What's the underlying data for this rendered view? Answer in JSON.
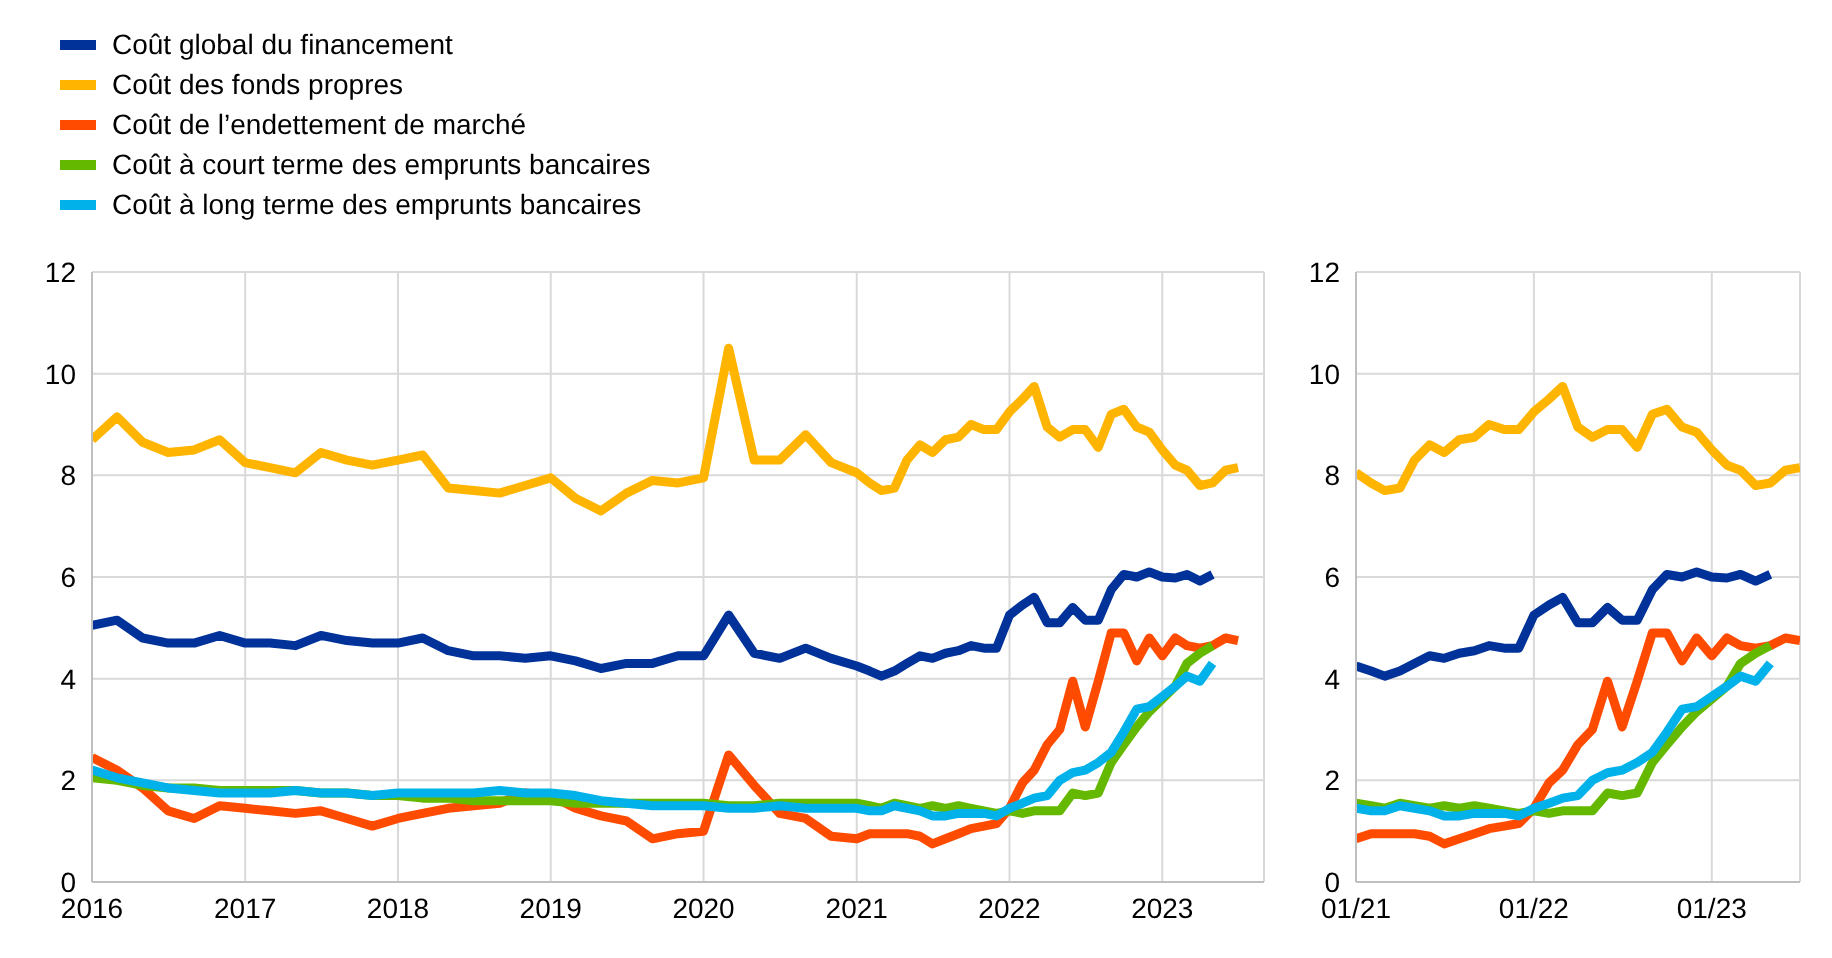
{
  "chart_data": [
    {
      "type": "line",
      "legend": "top left",
      "grid": true,
      "x": [
        "2016-01",
        "2016-03",
        "2016-05",
        "2016-07",
        "2016-09",
        "2016-11",
        "2017-01",
        "2017-03",
        "2017-05",
        "2017-07",
        "2017-09",
        "2017-11",
        "2018-01",
        "2018-03",
        "2018-05",
        "2018-07",
        "2018-09",
        "2018-11",
        "2019-01",
        "2019-03",
        "2019-05",
        "2019-07",
        "2019-09",
        "2019-11",
        "2020-01",
        "2020-03",
        "2020-05",
        "2020-07",
        "2020-09",
        "2020-11",
        "2021-01",
        "2021-02",
        "2021-03",
        "2021-04",
        "2021-05",
        "2021-06",
        "2021-07",
        "2021-08",
        "2021-09",
        "2021-10",
        "2021-11",
        "2021-12",
        "2022-01",
        "2022-02",
        "2022-03",
        "2022-04",
        "2022-05",
        "2022-06",
        "2022-07",
        "2022-08",
        "2022-09",
        "2022-10",
        "2022-11",
        "2022-12",
        "2023-01",
        "2023-02",
        "2023-03",
        "2023-04",
        "2023-05",
        "2023-06",
        "2023-07"
      ],
      "xlim": [
        "2016-01",
        "2023-09"
      ],
      "xticks": [
        {
          "value": "2016-01",
          "label": "2016"
        },
        {
          "value": "2017-01",
          "label": "2017"
        },
        {
          "value": "2018-01",
          "label": "2018"
        },
        {
          "value": "2019-01",
          "label": "2019"
        },
        {
          "value": "2020-01",
          "label": "2020"
        },
        {
          "value": "2021-01",
          "label": "2021"
        },
        {
          "value": "2022-01",
          "label": "2022"
        },
        {
          "value": "2023-01",
          "label": "2023"
        }
      ],
      "ylim": [
        0,
        12
      ],
      "yticks": [
        0,
        2,
        4,
        6,
        8,
        10,
        12
      ],
      "series": [
        {
          "name": "Coût global du financement",
          "color": "#003299",
          "values": [
            5.05,
            5.15,
            4.8,
            4.7,
            4.7,
            4.85,
            4.7,
            4.7,
            4.65,
            4.85,
            4.75,
            4.7,
            4.7,
            4.8,
            4.55,
            4.45,
            4.45,
            4.4,
            4.45,
            4.35,
            4.2,
            4.3,
            4.3,
            4.45,
            4.45,
            5.25,
            4.5,
            4.4,
            4.6,
            4.4,
            4.25,
            4.15,
            4.05,
            4.15,
            4.3,
            4.45,
            4.4,
            4.5,
            4.55,
            4.65,
            4.6,
            4.6,
            5.25,
            5.45,
            5.6,
            5.1,
            5.1,
            5.4,
            5.15,
            5.15,
            5.75,
            6.05,
            6.0,
            6.1,
            6.0,
            5.98,
            6.05,
            5.92,
            6.05,
            null,
            null
          ]
        },
        {
          "name": "Coût des fonds propres",
          "color": "#ffb400",
          "values": [
            8.7,
            9.15,
            8.65,
            8.45,
            8.5,
            8.7,
            8.25,
            8.15,
            8.05,
            8.45,
            8.3,
            8.2,
            8.3,
            8.4,
            7.75,
            7.7,
            7.65,
            7.8,
            7.95,
            7.55,
            7.3,
            7.65,
            7.9,
            7.85,
            7.95,
            10.5,
            8.3,
            8.3,
            8.8,
            8.25,
            8.05,
            7.85,
            7.7,
            7.75,
            8.3,
            8.6,
            8.45,
            8.7,
            8.75,
            9.0,
            8.9,
            8.9,
            9.25,
            9.5,
            9.75,
            8.95,
            8.75,
            8.9,
            8.9,
            8.55,
            9.2,
            9.3,
            8.95,
            8.85,
            8.5,
            8.2,
            8.1,
            7.8,
            7.85,
            8.1,
            8.15
          ]
        },
        {
          "name": "Coût de l’endettement de marché",
          "color": "#ff4b00",
          "values": [
            2.45,
            2.2,
            1.85,
            1.4,
            1.25,
            1.5,
            1.45,
            1.4,
            1.35,
            1.4,
            1.25,
            1.1,
            1.25,
            1.35,
            1.45,
            1.5,
            1.55,
            1.75,
            1.7,
            1.45,
            1.3,
            1.2,
            0.85,
            0.95,
            1.0,
            2.5,
            1.9,
            1.35,
            1.25,
            0.9,
            0.85,
            0.95,
            0.95,
            0.95,
            0.95,
            0.9,
            0.75,
            0.85,
            0.95,
            1.05,
            1.1,
            1.15,
            1.45,
            1.95,
            2.2,
            2.7,
            3.0,
            3.95,
            3.05,
            3.95,
            4.9,
            4.9,
            4.35,
            4.8,
            4.45,
            4.8,
            4.65,
            4.6,
            4.65,
            4.8,
            4.75
          ]
        },
        {
          "name": "Coût à court terme des emprunts bancaires",
          "color": "#65b800",
          "values": [
            2.05,
            2.0,
            1.9,
            1.85,
            1.85,
            1.8,
            1.8,
            1.8,
            1.8,
            1.75,
            1.75,
            1.7,
            1.7,
            1.65,
            1.65,
            1.6,
            1.6,
            1.6,
            1.6,
            1.55,
            1.55,
            1.55,
            1.55,
            1.55,
            1.55,
            1.5,
            1.5,
            1.55,
            1.55,
            1.55,
            1.55,
            1.5,
            1.45,
            1.55,
            1.5,
            1.45,
            1.5,
            1.45,
            1.5,
            1.45,
            1.4,
            1.35,
            1.4,
            1.35,
            1.4,
            1.4,
            1.4,
            1.75,
            1.7,
            1.75,
            2.35,
            2.7,
            3.05,
            3.35,
            3.6,
            3.85,
            4.3,
            4.5,
            4.65,
            null,
            null
          ]
        },
        {
          "name": "Coût à long terme des emprunts bancaires",
          "color": "#00b1ea",
          "values": [
            2.2,
            2.05,
            1.95,
            1.85,
            1.8,
            1.75,
            1.75,
            1.75,
            1.8,
            1.75,
            1.75,
            1.7,
            1.75,
            1.75,
            1.75,
            1.75,
            1.8,
            1.75,
            1.75,
            1.7,
            1.6,
            1.55,
            1.5,
            1.5,
            1.5,
            1.45,
            1.45,
            1.5,
            1.45,
            1.45,
            1.45,
            1.4,
            1.4,
            1.5,
            1.45,
            1.4,
            1.3,
            1.3,
            1.35,
            1.35,
            1.35,
            1.3,
            1.45,
            1.55,
            1.65,
            1.7,
            2.0,
            2.15,
            2.2,
            2.35,
            2.55,
            2.95,
            3.4,
            3.45,
            3.65,
            3.85,
            4.05,
            3.95,
            4.3,
            null,
            null
          ]
        }
      ]
    },
    {
      "type": "line",
      "grid": true,
      "x": [
        "2021-01",
        "2021-02",
        "2021-03",
        "2021-04",
        "2021-05",
        "2021-06",
        "2021-07",
        "2021-08",
        "2021-09",
        "2021-10",
        "2021-11",
        "2021-12",
        "2022-01",
        "2022-02",
        "2022-03",
        "2022-04",
        "2022-05",
        "2022-06",
        "2022-07",
        "2022-08",
        "2022-09",
        "2022-10",
        "2022-11",
        "2022-12",
        "2023-01",
        "2023-02",
        "2023-03",
        "2023-04",
        "2023-05",
        "2023-06",
        "2023-07"
      ],
      "xlim": [
        "2021-01",
        "2023-07"
      ],
      "xticks": [
        {
          "value": "2021-01",
          "label": "01/21"
        },
        {
          "value": "2022-01",
          "label": "01/22"
        },
        {
          "value": "2023-01",
          "label": "01/23"
        }
      ],
      "ylim": [
        0,
        12
      ],
      "yticks": [
        0,
        2,
        4,
        6,
        8,
        10,
        12
      ],
      "series": [
        {
          "color": "#003299",
          "values": [
            4.25,
            4.15,
            4.05,
            4.15,
            4.3,
            4.45,
            4.4,
            4.5,
            4.55,
            4.65,
            4.6,
            4.6,
            5.25,
            5.45,
            5.6,
            5.1,
            5.1,
            5.4,
            5.15,
            5.15,
            5.75,
            6.05,
            6.0,
            6.1,
            6.0,
            5.98,
            6.05,
            5.92,
            6.05,
            null,
            null
          ]
        },
        {
          "color": "#ffb400",
          "values": [
            8.05,
            7.85,
            7.7,
            7.75,
            8.3,
            8.6,
            8.45,
            8.7,
            8.75,
            9.0,
            8.9,
            8.9,
            9.25,
            9.5,
            9.75,
            8.95,
            8.75,
            8.9,
            8.9,
            8.55,
            9.2,
            9.3,
            8.95,
            8.85,
            8.5,
            8.2,
            8.1,
            7.8,
            7.85,
            8.1,
            8.15
          ]
        },
        {
          "color": "#ff4b00",
          "values": [
            0.85,
            0.95,
            0.95,
            0.95,
            0.95,
            0.9,
            0.75,
            0.85,
            0.95,
            1.05,
            1.1,
            1.15,
            1.45,
            1.95,
            2.2,
            2.7,
            3.0,
            3.95,
            3.05,
            3.95,
            4.9,
            4.9,
            4.35,
            4.8,
            4.45,
            4.8,
            4.65,
            4.6,
            4.65,
            4.8,
            4.75
          ]
        },
        {
          "color": "#65b800",
          "values": [
            1.55,
            1.5,
            1.45,
            1.55,
            1.5,
            1.45,
            1.5,
            1.45,
            1.5,
            1.45,
            1.4,
            1.35,
            1.4,
            1.35,
            1.4,
            1.4,
            1.4,
            1.75,
            1.7,
            1.75,
            2.35,
            2.7,
            3.05,
            3.35,
            3.6,
            3.85,
            4.3,
            4.5,
            4.65,
            null,
            null
          ]
        },
        {
          "color": "#00b1ea",
          "values": [
            1.45,
            1.4,
            1.4,
            1.5,
            1.45,
            1.4,
            1.3,
            1.3,
            1.35,
            1.35,
            1.35,
            1.3,
            1.45,
            1.55,
            1.65,
            1.7,
            2.0,
            2.15,
            2.2,
            2.35,
            2.55,
            2.95,
            3.4,
            3.45,
            3.65,
            3.85,
            4.05,
            3.95,
            4.3,
            null,
            null
          ]
        }
      ]
    }
  ]
}
